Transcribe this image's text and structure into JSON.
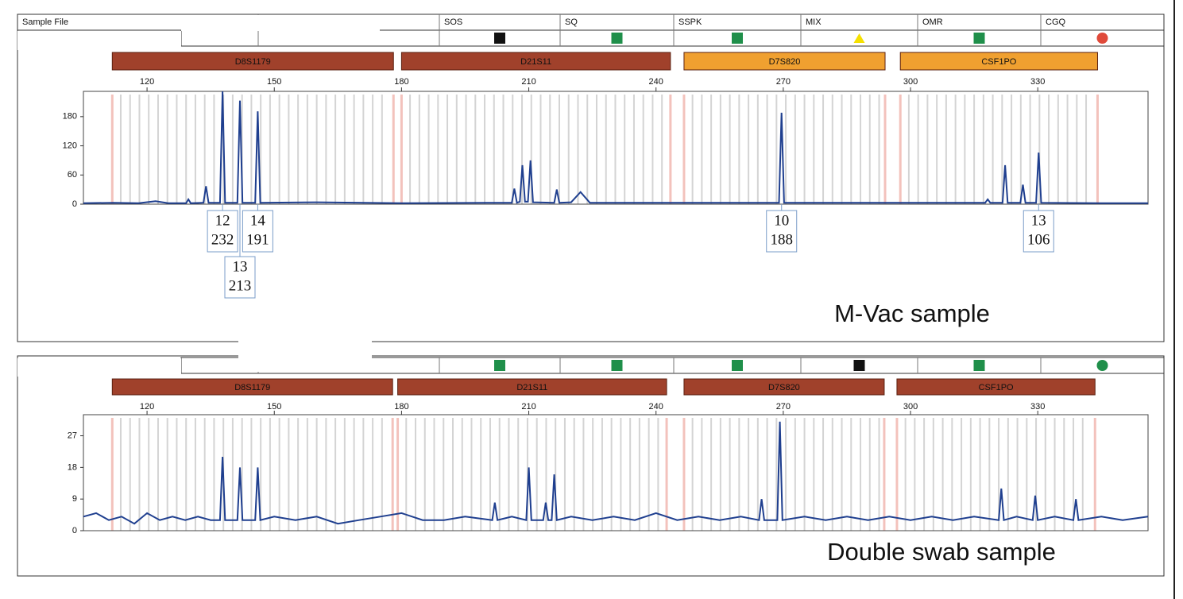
{
  "header": {
    "columns": [
      "Sample File",
      "SOS",
      "SQ",
      "SSPK",
      "MIX",
      "OMR",
      "CGQ"
    ]
  },
  "chart_data": [
    {
      "type": "line",
      "annotation": "M-Vac sample",
      "color": "#1f3f8f",
      "flags": [
        {
          "shape": "square",
          "color": "#111111"
        },
        {
          "shape": "square",
          "color": "#1f8f4a"
        },
        {
          "shape": "square",
          "color": "#1f8f4a"
        },
        {
          "shape": "triangle",
          "color": "#f5e000"
        },
        {
          "shape": "square",
          "color": "#1f8f4a"
        },
        {
          "shape": "circle",
          "color": "#e04a3a"
        }
      ],
      "loci": [
        {
          "name": "D8S1179",
          "color": "#a0412b",
          "start": 111.8,
          "end": 178.1
        },
        {
          "name": "D21S11",
          "color": "#a0412b",
          "start": 180.0,
          "end": 243.4
        },
        {
          "name": "D7S820",
          "color": "#f0a030",
          "start": 246.6,
          "end": 294.0
        },
        {
          "name": "CSF1PO",
          "color": "#f0a030",
          "start": 297.6,
          "end": 344.1
        }
      ],
      "x": [
        105,
        112,
        118,
        122,
        125,
        129.2,
        129.75,
        130.3,
        133.3,
        133.9,
        134.5,
        137.2,
        137.8,
        138.4,
        141.3,
        141.9,
        142.5,
        145.5,
        146.1,
        146.7,
        160,
        180,
        200,
        206,
        206.6,
        207.2,
        207.9,
        208.5,
        209.1,
        209.8,
        210.4,
        211,
        216,
        216.6,
        217.2,
        220,
        222.2,
        224.4,
        240,
        262,
        269,
        269.6,
        270.2,
        290,
        316,
        317.6,
        318.2,
        318.8,
        321.7,
        322.3,
        322.9,
        325.9,
        326.5,
        327.1,
        329.6,
        330.2,
        330.8,
        345,
        356
      ],
      "values": [
        2,
        3,
        2,
        6,
        2,
        2,
        10,
        2,
        3,
        37,
        3,
        3,
        232,
        3,
        3,
        213,
        3,
        3,
        191,
        3,
        4,
        2,
        3,
        3,
        32,
        3,
        5,
        80,
        5,
        5,
        90,
        4,
        3,
        30,
        3,
        4,
        25,
        3,
        3,
        3,
        3,
        188,
        3,
        3,
        3,
        3,
        10,
        3,
        3,
        80,
        3,
        3,
        40,
        3,
        3,
        106,
        3,
        2,
        2
      ],
      "peak_labels": [
        {
          "allele": 12,
          "height": 232,
          "x": 137.8
        },
        {
          "allele": 13,
          "height": 213,
          "x": 141.9
        },
        {
          "allele": 14,
          "height": 191,
          "x": 146.1
        },
        {
          "allele": 10,
          "height": 188,
          "x": 269.6
        },
        {
          "allele": 13,
          "height": 106,
          "x": 330.2
        }
      ],
      "xlim": [
        105,
        356
      ],
      "ylim": [
        0,
        232
      ],
      "xticks": [
        120,
        150,
        180,
        210,
        240,
        270,
        300,
        330
      ],
      "yticks": [
        0,
        60,
        120,
        180
      ]
    },
    {
      "type": "line",
      "annotation": "Double swab sample",
      "color": "#1f3f8f",
      "flags": [
        {
          "shape": "square",
          "color": "#1f8f4a"
        },
        {
          "shape": "square",
          "color": "#1f8f4a"
        },
        {
          "shape": "square",
          "color": "#1f8f4a"
        },
        {
          "shape": "square",
          "color": "#111111"
        },
        {
          "shape": "square",
          "color": "#1f8f4a"
        },
        {
          "shape": "circle",
          "color": "#1f8f4a"
        }
      ],
      "loci": [
        {
          "name": "D8S1179",
          "color": "#a0412b",
          "start": 111.8,
          "end": 177.9
        },
        {
          "name": "D21S11",
          "color": "#a0412b",
          "start": 179.1,
          "end": 242.5
        },
        {
          "name": "D7S820",
          "color": "#a0412b",
          "start": 246.6,
          "end": 293.8
        },
        {
          "name": "CSF1PO",
          "color": "#a0412b",
          "start": 296.8,
          "end": 343.5
        }
      ],
      "x": [
        105,
        108,
        111,
        114,
        117,
        120,
        123,
        126,
        129,
        132,
        135,
        137.2,
        137.8,
        138.4,
        141.3,
        141.9,
        142.5,
        145.5,
        146.1,
        146.7,
        150,
        155,
        160,
        165,
        170,
        175,
        180,
        185,
        190,
        195,
        201.4,
        202,
        202.6,
        206,
        209.4,
        210,
        210.6,
        213.4,
        214,
        214.6,
        215.4,
        216,
        216.6,
        220,
        225,
        230,
        235,
        240,
        245,
        250,
        255,
        260,
        264.3,
        264.9,
        265.5,
        268.6,
        269.2,
        269.8,
        275,
        280,
        285,
        290,
        295,
        300,
        305,
        310,
        315,
        320.8,
        321.4,
        322,
        325,
        328.8,
        329.4,
        330,
        334,
        338.4,
        339,
        339.6,
        345,
        350,
        356
      ],
      "values": [
        4,
        5,
        3,
        4,
        2,
        5,
        3,
        4,
        3,
        4,
        3,
        3,
        21,
        3,
        3,
        18,
        3,
        3,
        18,
        3,
        4,
        3,
        4,
        2,
        3,
        4,
        5,
        3,
        3,
        4,
        3,
        8,
        3,
        4,
        3,
        18,
        3,
        3,
        8,
        3,
        3,
        16,
        3,
        4,
        3,
        4,
        3,
        5,
        3,
        4,
        3,
        4,
        3,
        9,
        3,
        3,
        31,
        3,
        4,
        3,
        4,
        3,
        4,
        3,
        4,
        3,
        4,
        3,
        12,
        3,
        4,
        3,
        10,
        3,
        4,
        3,
        9,
        3,
        4,
        3,
        4
      ],
      "xlim": [
        105,
        356
      ],
      "ylim": [
        0,
        33
      ],
      "xticks": [
        120,
        150,
        180,
        210,
        240,
        270,
        300,
        330
      ],
      "yticks": [
        0,
        9,
        18,
        27
      ]
    }
  ]
}
